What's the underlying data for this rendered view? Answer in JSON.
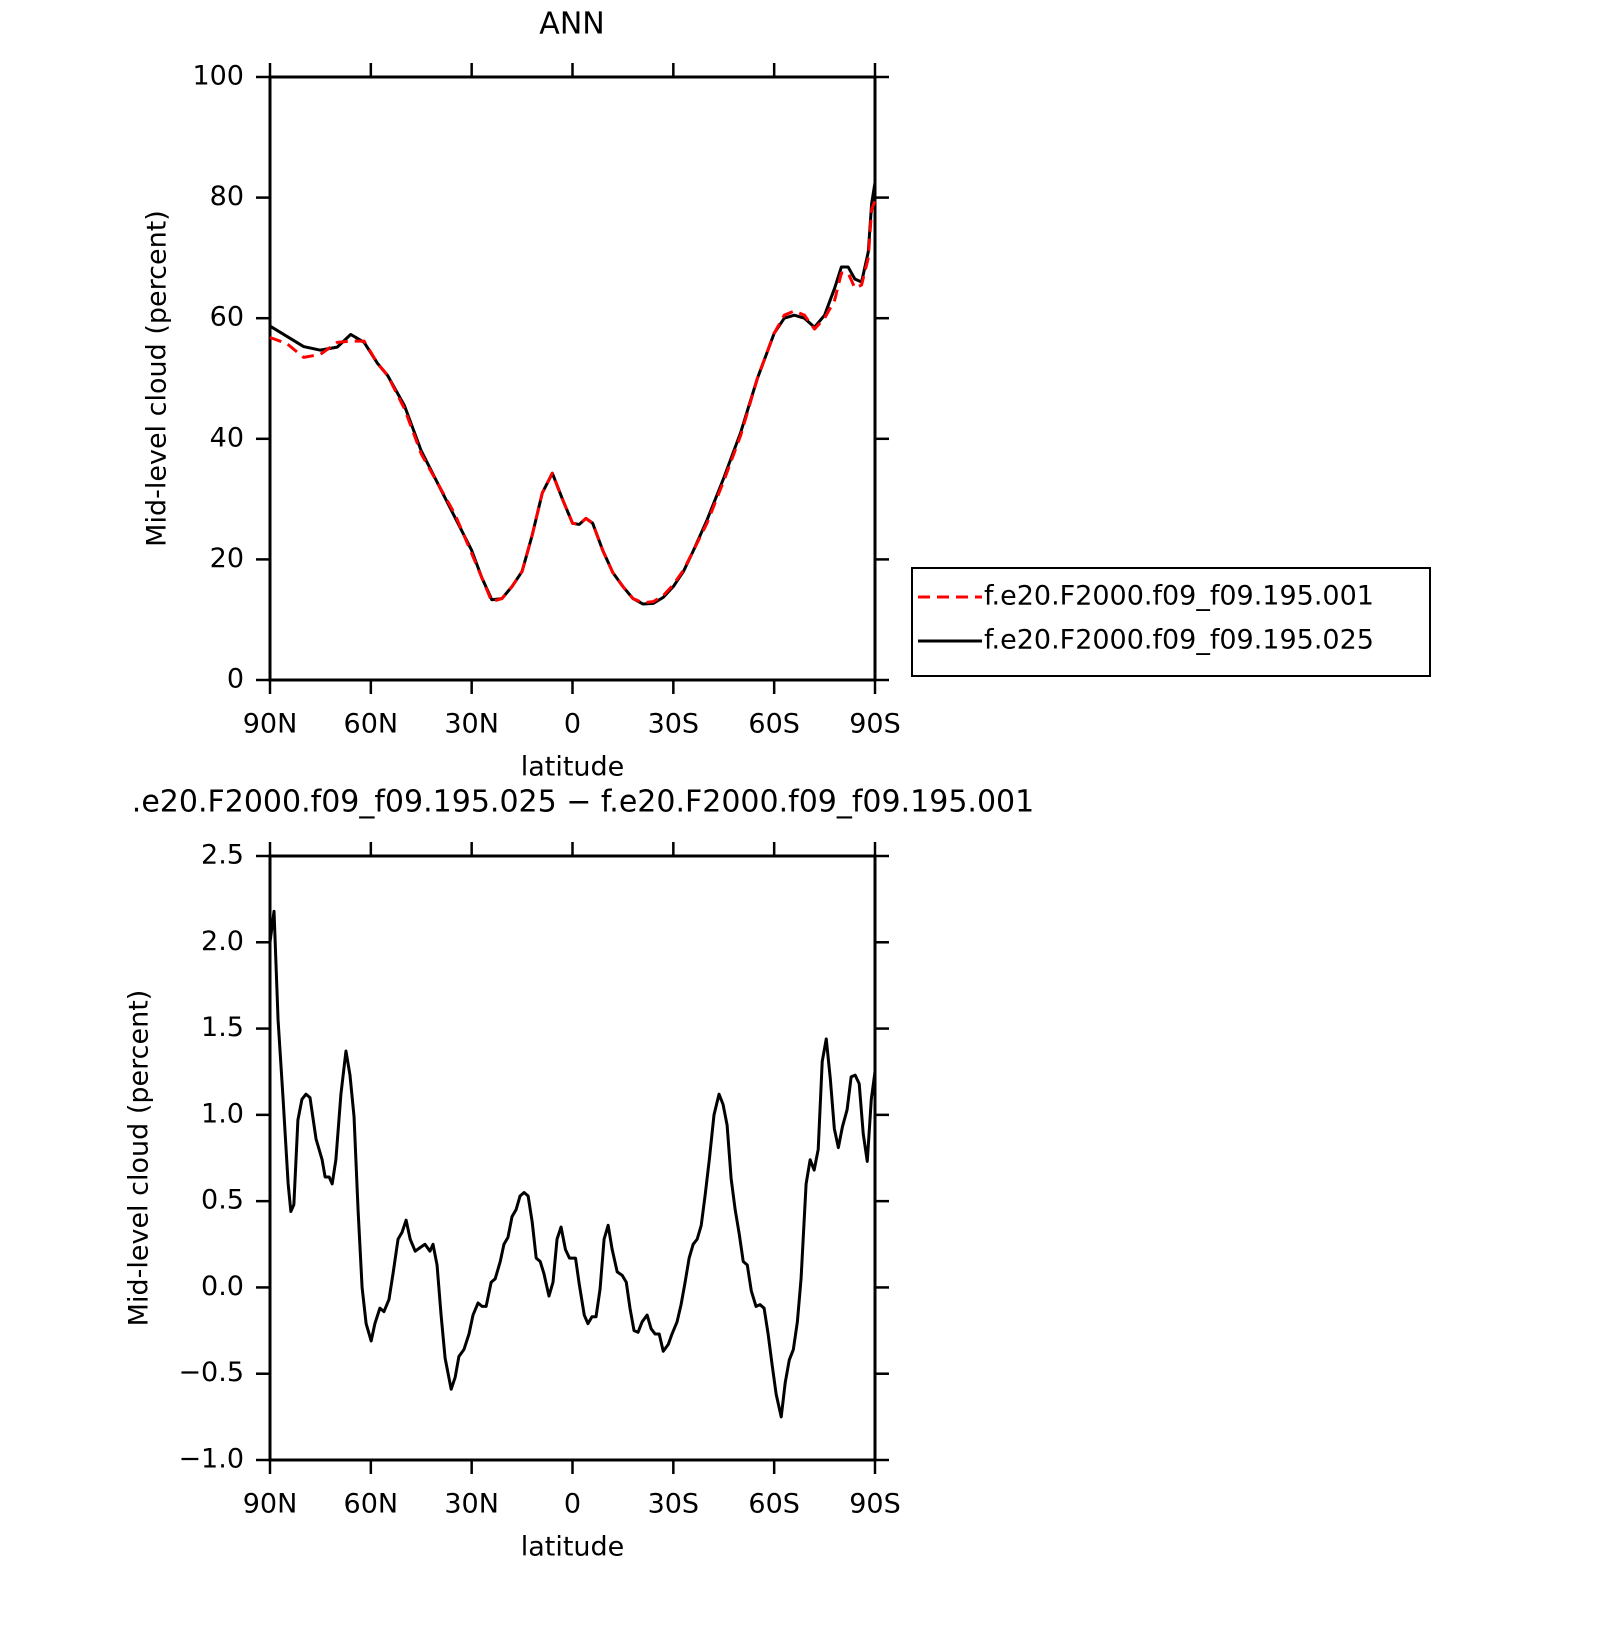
{
  "chart_data": [
    {
      "type": "line",
      "title": "ANN",
      "xlabel": "latitude",
      "ylabel": "Mid-level cloud (percent)",
      "x": [
        90,
        85,
        80,
        75,
        70,
        66,
        62,
        58,
        55,
        50,
        45,
        40,
        35,
        30,
        27,
        24,
        21,
        18,
        15,
        12,
        9,
        6,
        3,
        0,
        -2,
        -4,
        -6,
        -9,
        -12,
        -15,
        -18,
        -21,
        -24,
        -27,
        -30,
        -33,
        -36,
        -40,
        -45,
        -50,
        -55,
        -60,
        -63,
        -66,
        -69,
        -72,
        -75,
        -78,
        -80,
        -82,
        -84,
        -86,
        -88,
        -89,
        -90
      ],
      "series": [
        {
          "name": "f.e20.F2000.f09_f09.195.001",
          "color": "#ff0000",
          "line_style": "dashed",
          "values": [
            56.8,
            55.8,
            53.5,
            54,
            56,
            56.2,
            56.2,
            52.5,
            50.5,
            45,
            37.5,
            32.5,
            27.5,
            21,
            17,
            13,
            13.5,
            15.5,
            18,
            24,
            31,
            34.3,
            30,
            26,
            25.8,
            26.8,
            26,
            21.5,
            17.8,
            15.5,
            13.5,
            12.8,
            13,
            14,
            15.8,
            18.2,
            21.5,
            26,
            33,
            40.5,
            50,
            57.5,
            60.5,
            61.2,
            60.5,
            58.2,
            60,
            63,
            67.5,
            67.5,
            65,
            65.5,
            70,
            78,
            79.5
          ]
        },
        {
          "name": "f.e20.F2000.f09_f09.195.025",
          "color": "#000000",
          "line_style": "solid",
          "values": [
            58.7,
            57,
            55.3,
            54.7,
            55.2,
            57.3,
            56,
            52.5,
            50.5,
            45.5,
            38,
            32.5,
            27,
            21.5,
            17,
            13.3,
            13.5,
            15.5,
            18,
            24,
            31,
            34.3,
            30,
            26,
            25.8,
            26.8,
            26,
            21.5,
            17.8,
            15.5,
            13.5,
            12.6,
            12.7,
            13.7,
            15.5,
            18,
            21.5,
            26.5,
            33.5,
            41,
            50,
            57.5,
            60,
            60.5,
            60,
            58.5,
            60.5,
            65,
            68.5,
            68.5,
            66.5,
            66,
            71,
            79,
            82.5
          ]
        }
      ],
      "xlim": [
        90,
        -90
      ],
      "xticks": [
        {
          "value": 90,
          "label": "90N"
        },
        {
          "value": 60,
          "label": "60N"
        },
        {
          "value": 30,
          "label": "30N"
        },
        0,
        {
          "value": -30,
          "label": "30S"
        },
        {
          "value": -60,
          "label": "60S"
        },
        {
          "value": -90,
          "label": "90S"
        }
      ],
      "ylim": [
        0,
        100
      ],
      "yticks": [
        0,
        20,
        40,
        60,
        80,
        100
      ],
      "legend": "right"
    },
    {
      "type": "line",
      "title": ".e20.F2000.f09_f09.195.025 − f.e20.F2000.f09_f09.195.001",
      "xlabel": "latitude",
      "ylabel": "Mid-level cloud (percent)",
      "color": "#000000",
      "x": [
        90,
        88.8,
        87.6,
        86.1,
        84.6,
        83.8,
        82.9,
        81.7,
        80.5,
        79.3,
        78.1,
        76.3,
        74.5,
        73.6,
        72.4,
        71.5,
        70.4,
        68.9,
        67.4,
        66.2,
        65,
        63.8,
        62.6,
        61.4,
        59.9,
        58.8,
        57.3,
        56.1,
        54.6,
        53.4,
        51.9,
        50.7,
        49.5,
        48.3,
        46.8,
        45.4,
        43.9,
        42.4,
        41.5,
        40.3,
        39.1,
        37.9,
        36.1,
        34.9,
        33.8,
        32.3,
        30.8,
        29.6,
        28.1,
        26.9,
        25.7,
        24.2,
        23,
        21.5,
        20.4,
        19.2,
        18,
        16.8,
        15.6,
        14.4,
        13.2,
        12,
        10.8,
        9.6,
        8.5,
        7,
        5.8,
        4.6,
        3.4,
        2.1,
        0.9,
        -0.9,
        -2,
        -3.5,
        -4.6,
        -5.8,
        -7,
        -8.2,
        -9.4,
        -10.6,
        -11.8,
        -13.3,
        -14.8,
        -16,
        -17.1,
        -18.3,
        -19.5,
        -20.7,
        -22.2,
        -23.4,
        -24.6,
        -25.8,
        -27,
        -28.5,
        -29.6,
        -31.1,
        -32.3,
        -33.5,
        -34.7,
        -35.9,
        -37.1,
        -38.3,
        -39.5,
        -40.7,
        -42.1,
        -43.6,
        -44.8,
        -46,
        -47.2,
        -48.4,
        -49.6,
        -50.8,
        -52,
        -53.2,
        -54.6,
        -55.8,
        -57,
        -58.2,
        -59.4,
        -60.6,
        -62.1,
        -63.3,
        -64.5,
        -65.7,
        -66.9,
        -68,
        -69.5,
        -70.7,
        -71.9,
        -73.1,
        -74.3,
        -75.5,
        -76.7,
        -77.9,
        -79.1,
        -80.3,
        -81.7,
        -82.9,
        -84.1,
        -85.3,
        -86.5,
        -87.7,
        -88.9,
        -90
      ],
      "values": [
        2.0,
        2.18,
        1.55,
        1.09,
        0.6,
        0.44,
        0.48,
        0.97,
        1.09,
        1.12,
        1.1,
        0.86,
        0.74,
        0.64,
        0.64,
        0.6,
        0.74,
        1.12,
        1.37,
        1.23,
        0.99,
        0.45,
        0,
        -0.21,
        -0.31,
        -0.21,
        -0.12,
        -0.14,
        -0.07,
        0.08,
        0.28,
        0.32,
        0.39,
        0.28,
        0.21,
        0.23,
        0.25,
        0.21,
        0.25,
        0.13,
        -0.16,
        -0.41,
        -0.59,
        -0.52,
        -0.4,
        -0.36,
        -0.27,
        -0.16,
        -0.09,
        -0.11,
        -0.11,
        0.03,
        0.05,
        0.15,
        0.25,
        0.29,
        0.41,
        0.45,
        0.53,
        0.55,
        0.53,
        0.38,
        0.17,
        0.15,
        0.08,
        -0.05,
        0.03,
        0.28,
        0.35,
        0.22,
        0.17,
        0.17,
        0.02,
        -0.16,
        -0.21,
        -0.17,
        -0.17,
        -0.01,
        0.28,
        0.36,
        0.22,
        0.09,
        0.07,
        0.03,
        -0.12,
        -0.25,
        -0.26,
        -0.2,
        -0.16,
        -0.24,
        -0.27,
        -0.27,
        -0.37,
        -0.33,
        -0.27,
        -0.2,
        -0.1,
        0.03,
        0.17,
        0.25,
        0.28,
        0.36,
        0.54,
        0.74,
        1,
        1.12,
        1.06,
        0.94,
        0.63,
        0.45,
        0.31,
        0.15,
        0.13,
        -0.02,
        -0.11,
        -0.1,
        -0.12,
        -0.27,
        -0.45,
        -0.62,
        -0.75,
        -0.55,
        -0.42,
        -0.36,
        -0.2,
        0.05,
        0.6,
        0.74,
        0.68,
        0.8,
        1.31,
        1.44,
        1.21,
        0.92,
        0.81,
        0.93,
        1.03,
        1.22,
        1.23,
        1.18,
        0.89,
        0.73,
        1.09,
        1.25
      ],
      "xlim": [
        90,
        -90
      ],
      "xticks": [
        {
          "value": 90,
          "label": "90N"
        },
        {
          "value": 60,
          "label": "60N"
        },
        {
          "value": 30,
          "label": "30N"
        },
        0,
        {
          "value": -30,
          "label": "30S"
        },
        {
          "value": -60,
          "label": "60S"
        },
        {
          "value": -90,
          "label": "90S"
        }
      ],
      "ylim": [
        -1.0,
        2.5
      ],
      "yticks": [
        {
          "value": -1.0,
          "label": "−1.0"
        },
        {
          "value": -0.5,
          "label": "−0.5"
        },
        {
          "value": 0,
          "label": "0.0"
        },
        0.5,
        {
          "value": 1.0,
          "label": "1.0"
        },
        1.5,
        {
          "value": 2.0,
          "label": "2.0"
        },
        2.5
      ]
    }
  ]
}
